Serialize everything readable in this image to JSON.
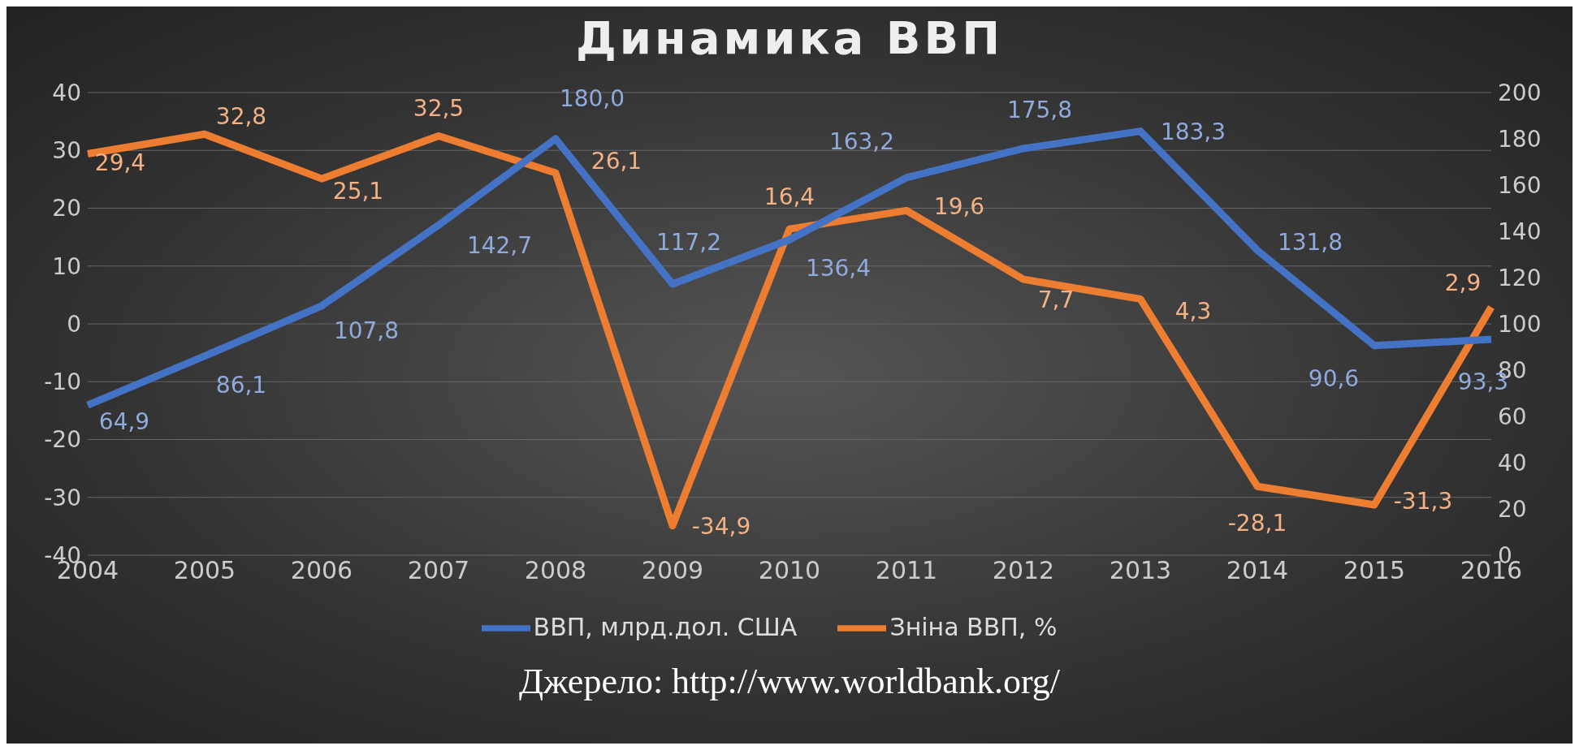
{
  "chart_data": {
    "type": "line",
    "title": "Динамика ВВП",
    "categories": [
      "2004",
      "2005",
      "2006",
      "2007",
      "2008",
      "2009",
      "2010",
      "2011",
      "2012",
      "2013",
      "2014",
      "2015",
      "2016"
    ],
    "series": [
      {
        "name": "Зніна ВВП, %",
        "color": "#ed7d31",
        "values": [
          29.4,
          32.8,
          25.1,
          32.5,
          26.1,
          -34.9,
          16.4,
          19.6,
          7.7,
          4.3,
          -28.1,
          -31.3,
          2.9
        ],
        "value_labels": [
          "29,4",
          "32,8",
          "25,1",
          "32,5",
          "26,1",
          "-34,9",
          "16,4",
          "19,6",
          "7,7",
          "4,3",
          "-28,1",
          "-31,3",
          "2,9"
        ]
      },
      {
        "name": "ВВП, млрд.дол. США",
        "color": "#4472c4",
        "axis": "y2",
        "values": [
          64.9,
          86.1,
          107.8,
          142.7,
          180.0,
          117.2,
          136.4,
          163.2,
          175.8,
          183.3,
          131.8,
          90.6,
          93.3
        ],
        "value_labels": [
          "64,9",
          "86,1",
          "107,8",
          "142,7",
          "180,0",
          "117,2",
          "136,4",
          "163,2",
          "175,8",
          "183,3",
          "131,8",
          "90,6",
          "93,3"
        ]
      }
    ],
    "ylim": [
      -40,
      40
    ],
    "yticks": [
      -40,
      -30,
      -20,
      -10,
      0,
      10,
      20,
      30,
      40
    ],
    "y2lim": [
      0,
      200
    ],
    "y2ticks": [
      0,
      20,
      40,
      60,
      80,
      100,
      120,
      140,
      160,
      180,
      200
    ],
    "grid": "y",
    "legend": "bottom",
    "marker": "none",
    "line_style": "solid",
    "annotations": [
      "Джерело: http://www.worldbank.org/"
    ]
  }
}
